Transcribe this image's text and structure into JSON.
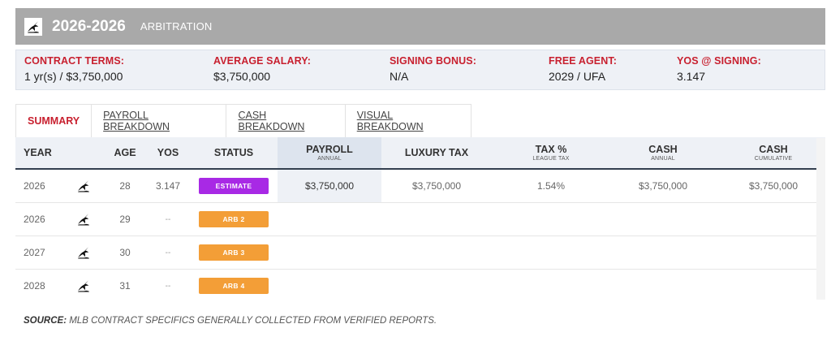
{
  "header": {
    "title": "2026-2026",
    "type": "ARBITRATION",
    "logo_icon": "marlin-logo-icon"
  },
  "terms": [
    {
      "label": "CONTRACT TERMS:",
      "value": "1 yr(s) / $3,750,000"
    },
    {
      "label": "AVERAGE SALARY:",
      "value": "$3,750,000"
    },
    {
      "label": "SIGNING BONUS:",
      "value": "N/A"
    },
    {
      "label": "FREE AGENT:",
      "value": "2029 / UFA"
    },
    {
      "label": "YOS @ SIGNING:",
      "value": "3.147"
    }
  ],
  "tabs": [
    "SUMMARY",
    "PAYROLL BREAKDOWN",
    "CASH BREAKDOWN",
    "VISUAL BREAKDOWN"
  ],
  "columns": {
    "year": "YEAR",
    "age": "AGE",
    "yos": "YOS",
    "status": "STATUS",
    "payroll": "PAYROLL",
    "payroll_sub": "ANNUAL",
    "luxury": "LUXURY TAX",
    "taxpct": "TAX %",
    "taxpct_sub": "LEAGUE TAX",
    "cash": "CASH",
    "cash_sub": "ANNUAL",
    "cashcum": "CASH",
    "cashcum_sub": "CUMULATIVE"
  },
  "rows": [
    {
      "year": "2026",
      "age": "28",
      "yos": "3.147",
      "status": "ESTIMATE",
      "payroll": "$3,750,000",
      "luxury": "$3,750,000",
      "taxpct": "1.54%",
      "cash": "$3,750,000",
      "cashcum": "$3,750,000"
    },
    {
      "year": "2026",
      "age": "29",
      "yos": "--",
      "status": "ARB 2"
    },
    {
      "year": "2027",
      "age": "30",
      "yos": "--",
      "status": "ARB 3"
    },
    {
      "year": "2028",
      "age": "31",
      "yos": "--",
      "status": "ARB 4"
    }
  ],
  "source": {
    "label": "SOURCE:",
    "text": " MLB CONTRACT SPECIFICS GENERALLY COLLECTED FROM VERIFIED REPORTS."
  },
  "colors": {
    "accent_red": "#c8202f",
    "estimate": "#a829e5",
    "arb": "#f39e37",
    "header_bg": "#a9a9a9"
  }
}
